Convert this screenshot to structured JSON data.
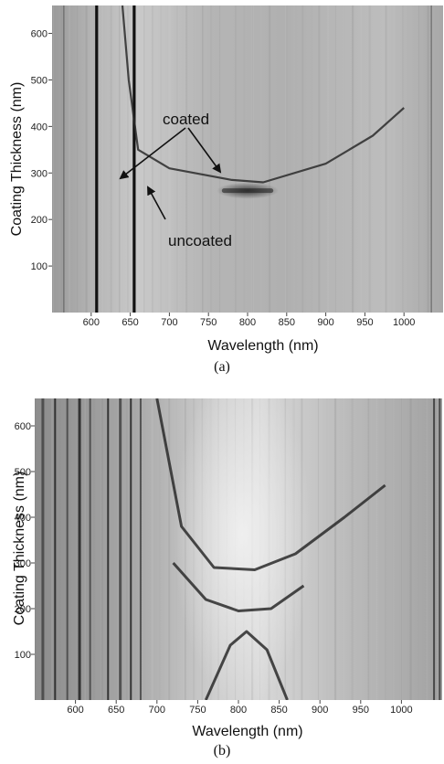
{
  "chart_data": [
    {
      "type": "heatmap",
      "panel_label": "(a)",
      "xlabel": "Wavelength (nm)",
      "ylabel": "Coating Thickness (nm)",
      "xlim": [
        550,
        1050
      ],
      "ylim": [
        0,
        660
      ],
      "x_ticks": [
        600,
        650,
        700,
        750,
        800,
        850,
        900,
        950,
        1000
      ],
      "y_ticks": [
        100,
        200,
        300,
        400,
        500,
        600
      ],
      "colormap": "grayscale",
      "annotations": [
        {
          "text": "coated",
          "x": 720,
          "y": 390
        },
        {
          "text": "uncoated",
          "x": 745,
          "y": 205
        }
      ],
      "features": [
        {
          "kind": "vertical-line",
          "x": 607
        },
        {
          "kind": "vertical-line",
          "x": 655
        },
        {
          "kind": "curve",
          "points": [
            [
              640,
              660
            ],
            [
              648,
              500
            ],
            [
              660,
              350
            ],
            [
              700,
              310
            ],
            [
              780,
              285
            ],
            [
              820,
              280
            ],
            [
              900,
              320
            ],
            [
              960,
              380
            ],
            [
              1000,
              440
            ]
          ]
        },
        {
          "kind": "dark-band",
          "x_range": [
            770,
            830
          ],
          "y": 262
        }
      ]
    },
    {
      "type": "heatmap",
      "panel_label": "(b)",
      "xlabel": "Wavelength (nm)",
      "ylabel": "Coating Thickness (nm)",
      "xlim": [
        550,
        1050
      ],
      "ylim": [
        0,
        660
      ],
      "x_ticks": [
        600,
        650,
        700,
        750,
        800,
        850,
        900,
        950,
        1000
      ],
      "y_ticks": [
        100,
        200,
        300,
        400,
        500,
        600
      ],
      "colormap": "grayscale",
      "features": [
        {
          "kind": "curve",
          "points": [
            [
              700,
              660
            ],
            [
              730,
              380
            ],
            [
              770,
              290
            ],
            [
              820,
              285
            ],
            [
              870,
              320
            ],
            [
              930,
              400
            ],
            [
              980,
              470
            ]
          ]
        },
        {
          "kind": "curve",
          "points": [
            [
              720,
              300
            ],
            [
              760,
              220
            ],
            [
              800,
              195
            ],
            [
              840,
              200
            ],
            [
              880,
              250
            ]
          ]
        },
        {
          "kind": "curve",
          "points": [
            [
              760,
              0
            ],
            [
              790,
              120
            ],
            [
              810,
              150
            ],
            [
              835,
              110
            ],
            [
              860,
              0
            ]
          ]
        }
      ]
    }
  ]
}
